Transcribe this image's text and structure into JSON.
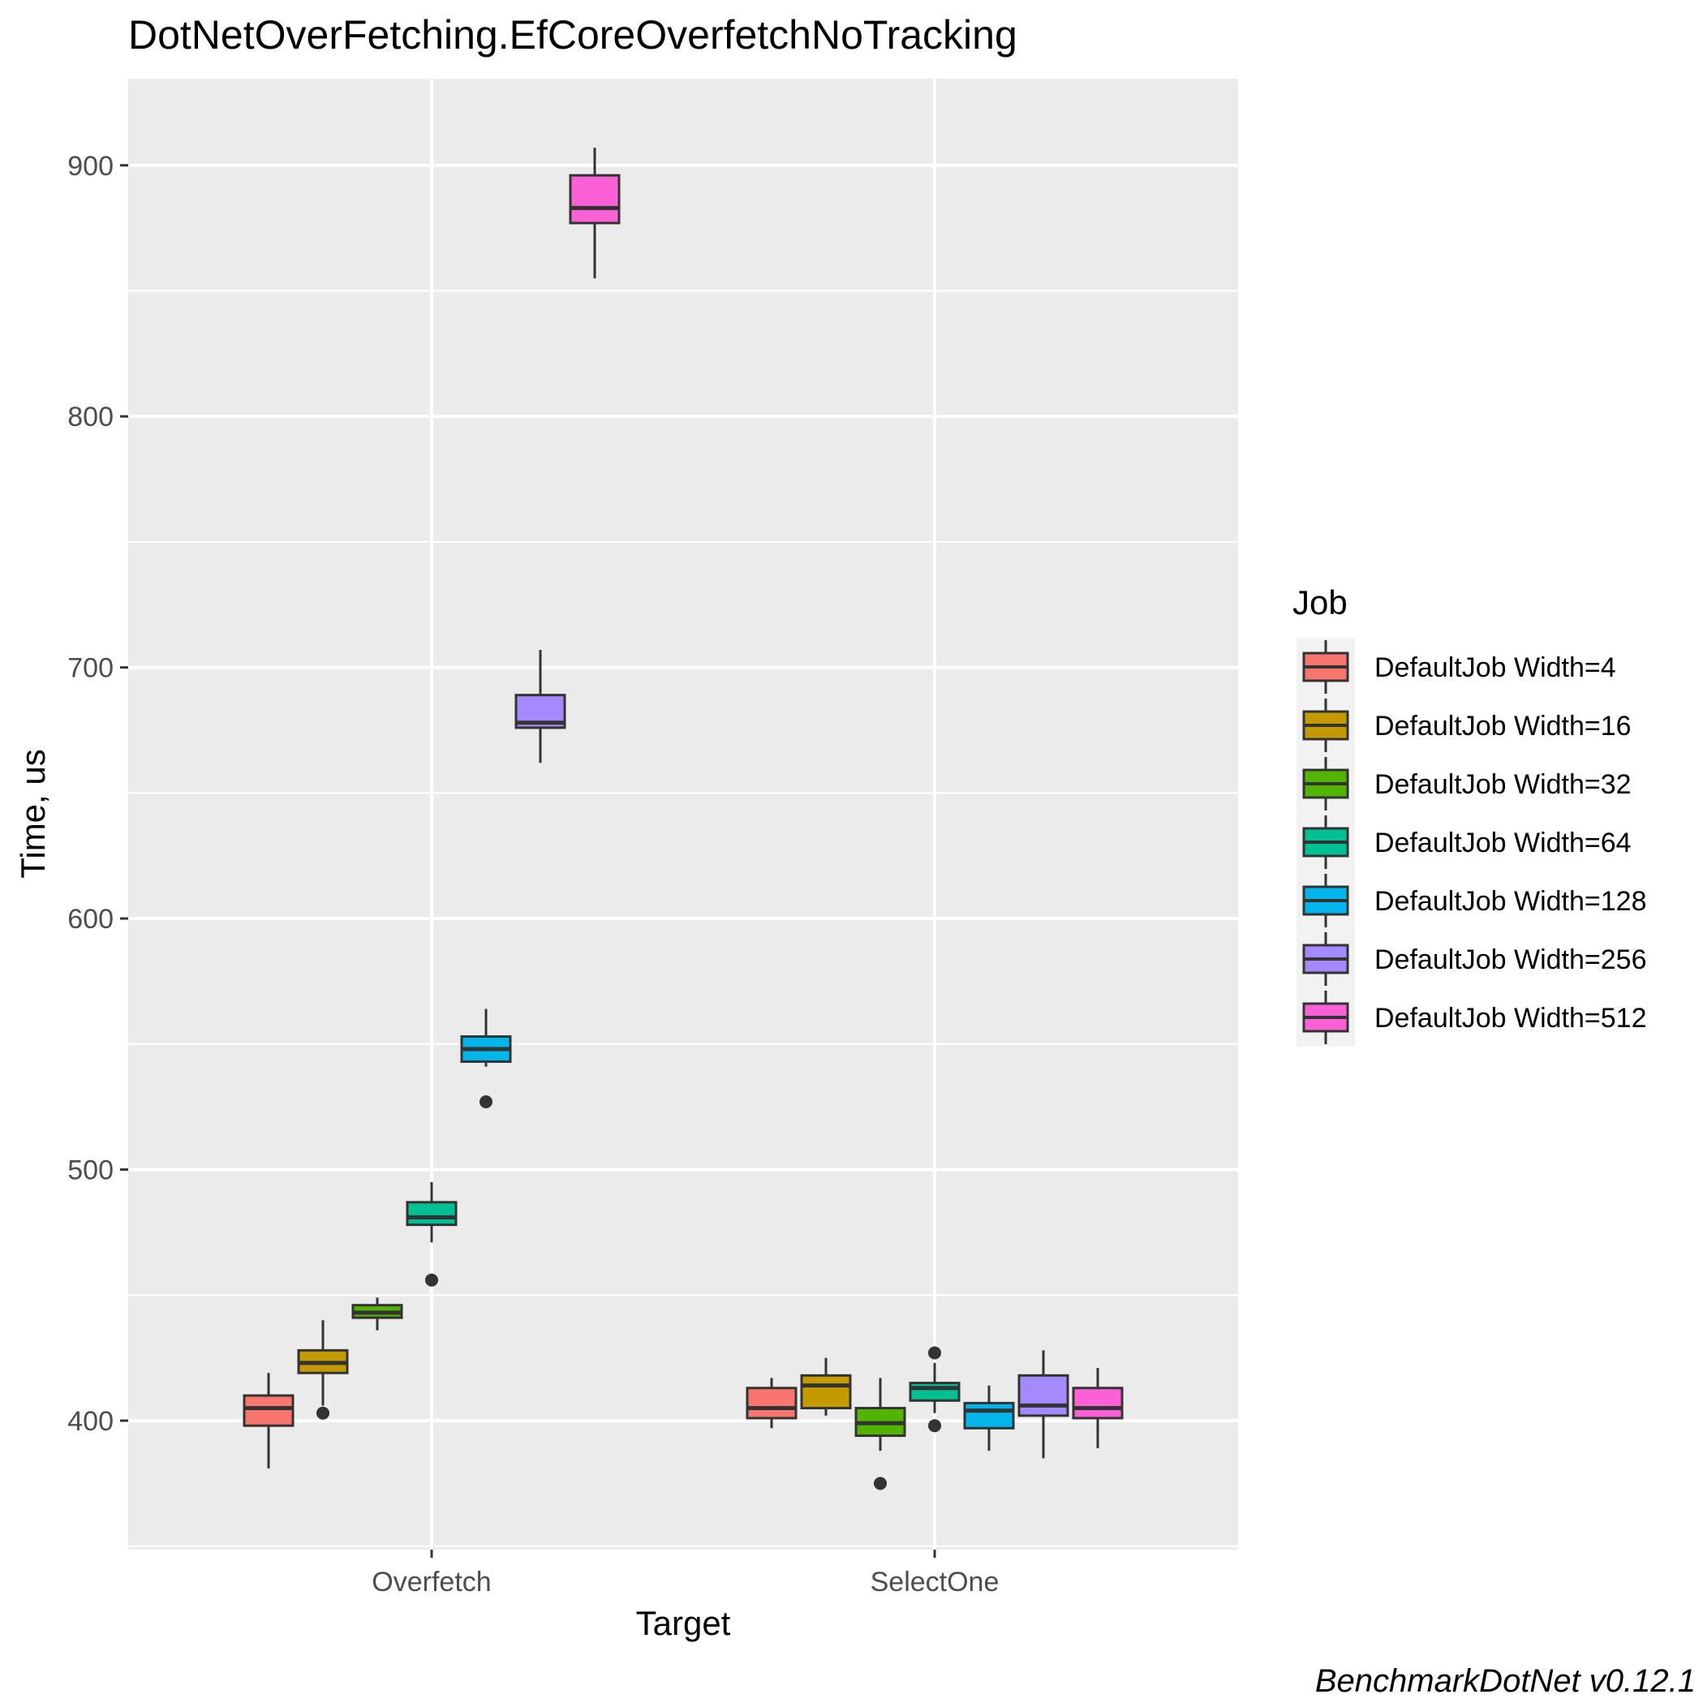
{
  "chart_data": {
    "type": "boxplot",
    "title": "DotNetOverFetching.EfCoreOverfetchNoTracking",
    "xlabel": "Target",
    "ylabel": "Time, us",
    "caption": "BenchmarkDotNet v0.12.1",
    "categories": [
      "Overfetch",
      "SelectOne"
    ],
    "ylim": [
      350,
      930
    ],
    "yticks": [
      400,
      500,
      600,
      700,
      800,
      900
    ],
    "ytick_labels": [
      "400",
      "500",
      "600",
      "700",
      "800",
      "900"
    ],
    "grid": true,
    "legend": {
      "title": "Job",
      "position": "right"
    },
    "series": [
      {
        "name": "DefaultJob Width=4",
        "color": "#F8766D",
        "boxes": [
          {
            "min": 381,
            "q1": 398,
            "median": 405,
            "q3": 410,
            "max": 419,
            "outliers": []
          },
          {
            "min": 397,
            "q1": 401,
            "median": 405,
            "q3": 413,
            "max": 417,
            "outliers": []
          }
        ]
      },
      {
        "name": "DefaultJob Width=16",
        "color": "#C49A00",
        "boxes": [
          {
            "min": 406,
            "q1": 419,
            "median": 423,
            "q3": 428,
            "max": 440,
            "outliers": [
              403
            ]
          },
          {
            "min": 402,
            "q1": 405,
            "median": 414,
            "q3": 418,
            "max": 425,
            "outliers": []
          }
        ]
      },
      {
        "name": "DefaultJob Width=32",
        "color": "#53B400",
        "boxes": [
          {
            "min": 436,
            "q1": 441,
            "median": 443,
            "q3": 446,
            "max": 449,
            "outliers": []
          },
          {
            "min": 388,
            "q1": 394,
            "median": 399,
            "q3": 405,
            "max": 417,
            "outliers": [
              375
            ]
          }
        ]
      },
      {
        "name": "DefaultJob Width=64",
        "color": "#00C094",
        "boxes": [
          {
            "min": 471,
            "q1": 478,
            "median": 481,
            "q3": 487,
            "max": 495,
            "outliers": [
              456
            ]
          },
          {
            "min": 403,
            "q1": 408,
            "median": 413,
            "q3": 415,
            "max": 423,
            "outliers": [
              427,
              398
            ]
          }
        ]
      },
      {
        "name": "DefaultJob Width=128",
        "color": "#00B6EB",
        "boxes": [
          {
            "min": 541,
            "q1": 543,
            "median": 548,
            "q3": 553,
            "max": 564,
            "outliers": [
              527
            ]
          },
          {
            "min": 388,
            "q1": 397,
            "median": 404,
            "q3": 407,
            "max": 414,
            "outliers": []
          }
        ]
      },
      {
        "name": "DefaultJob Width=256",
        "color": "#A58AFF",
        "boxes": [
          {
            "min": 662,
            "q1": 676,
            "median": 678,
            "q3": 689,
            "max": 707,
            "outliers": []
          },
          {
            "min": 385,
            "q1": 402,
            "median": 406,
            "q3": 418,
            "max": 428,
            "outliers": []
          }
        ]
      },
      {
        "name": "DefaultJob Width=512",
        "color": "#FB61D7",
        "boxes": [
          {
            "min": 855,
            "q1": 877,
            "median": 883,
            "q3": 896,
            "max": 907,
            "outliers": []
          },
          {
            "min": 389,
            "q1": 401,
            "median": 405,
            "q3": 413,
            "max": 421,
            "outliers": []
          }
        ]
      }
    ]
  }
}
